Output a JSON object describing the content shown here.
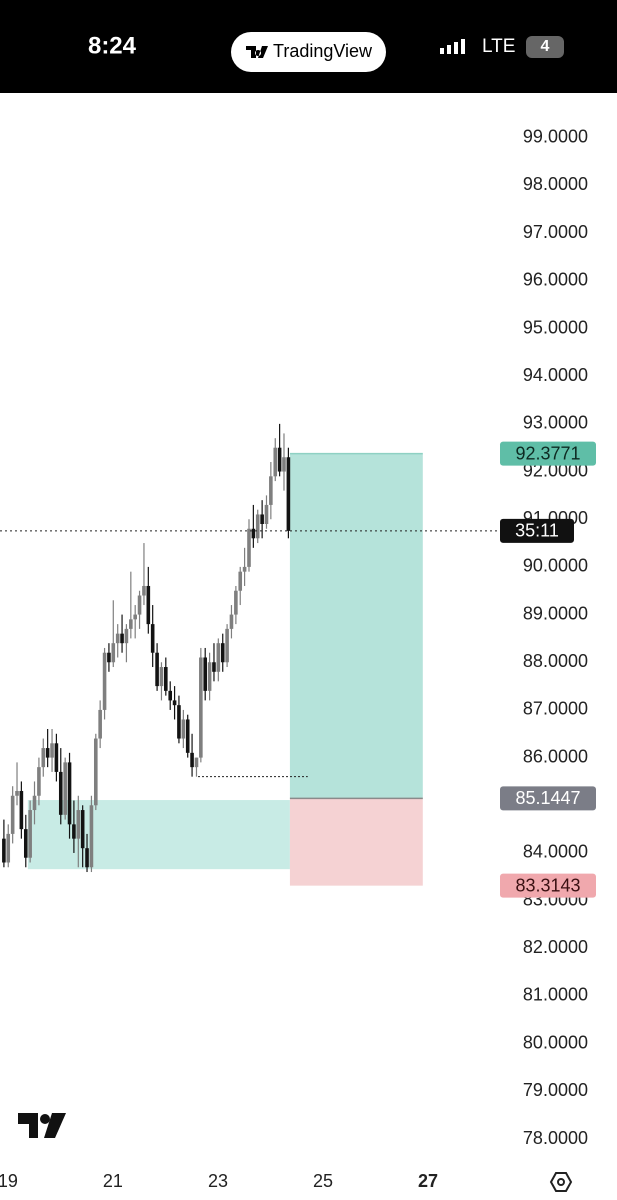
{
  "status_bar": {
    "time": "8:24",
    "app": "TradingView",
    "network": "LTE",
    "battery": "4"
  },
  "chart_data": {
    "type": "candlestick",
    "x": [
      18.924,
      19.007,
      19.091,
      19.174,
      19.257,
      19.341,
      19.424,
      19.507,
      19.591,
      19.674,
      19.757,
      19.841,
      19.924,
      20.007,
      20.091,
      20.174,
      20.257,
      20.341,
      20.424,
      20.507,
      20.591,
      20.674,
      20.757,
      20.841,
      20.924,
      21.007,
      21.091,
      21.174,
      21.257,
      21.341,
      21.424,
      21.507,
      21.591,
      21.674,
      21.757,
      21.841,
      21.924,
      22.007,
      22.091,
      22.174,
      22.257,
      22.341,
      22.424,
      22.507,
      22.591,
      22.674,
      22.757,
      22.841,
      22.924,
      23.007,
      23.091,
      23.174,
      23.257,
      23.341,
      23.424,
      23.507,
      23.591,
      23.674,
      23.757,
      23.841,
      23.924,
      24.007,
      24.091,
      24.174,
      24.257,
      24.341
    ],
    "open": [
      84.3,
      83.8,
      84.4,
      85.2,
      85.3,
      84.5,
      83.9,
      84.9,
      85.2,
      85.8,
      86.2,
      86.0,
      86.3,
      85.7,
      84.8,
      85.9,
      84.6,
      84.3,
      84.9,
      84.1,
      83.7,
      85.0,
      86.4,
      87.0,
      88.2,
      88.0,
      88.4,
      88.6,
      88.4,
      88.7,
      88.9,
      89.0,
      89.4,
      89.6,
      88.8,
      88.2,
      87.5,
      87.9,
      87.4,
      87.2,
      87.1,
      86.4,
      86.8,
      86.1,
      85.8,
      86.0,
      88.1,
      87.4,
      88.0,
      87.8,
      88.4,
      88.0,
      88.7,
      89.0,
      89.5,
      89.9,
      90.0,
      90.8,
      90.6,
      91.1,
      90.9,
      91.3,
      91.9,
      92.5,
      92.0,
      92.3
    ],
    "high": [
      84.7,
      84.6,
      85.4,
      85.9,
      85.5,
      84.8,
      85.1,
      85.5,
      86.0,
      86.4,
      86.6,
      86.6,
      86.5,
      86.2,
      86.0,
      86.1,
      85.1,
      85.2,
      85.0,
      84.4,
      85.2,
      86.5,
      87.2,
      88.3,
      88.4,
      89.3,
      88.8,
      89.0,
      88.8,
      89.9,
      89.2,
      89.5,
      90.5,
      90.0,
      89.2,
      88.4,
      88.0,
      88.1,
      87.6,
      87.5,
      87.3,
      87.0,
      86.9,
      86.5,
      86.0,
      88.3,
      88.3,
      88.2,
      88.4,
      88.5,
      88.6,
      88.8,
      89.2,
      89.6,
      90.0,
      90.4,
      91.0,
      91.3,
      91.2,
      91.4,
      91.5,
      92.2,
      92.7,
      93.0,
      92.8,
      92.5
    ],
    "low": [
      83.7,
      83.7,
      84.2,
      85.0,
      84.3,
      83.7,
      83.8,
      84.6,
      85.0,
      85.6,
      85.8,
      85.7,
      85.5,
      84.6,
      84.7,
      84.3,
      84.0,
      83.7,
      83.7,
      83.6,
      83.6,
      84.9,
      86.2,
      86.8,
      87.8,
      87.9,
      88.1,
      88.2,
      88.0,
      88.5,
      88.5,
      88.7,
      89.2,
      88.6,
      87.9,
      87.4,
      87.2,
      87.3,
      87.0,
      86.8,
      86.3,
      86.2,
      86.0,
      85.6,
      85.6,
      85.9,
      87.2,
      87.2,
      87.6,
      87.6,
      87.8,
      87.9,
      88.5,
      88.8,
      89.2,
      89.6,
      89.9,
      90.4,
      90.5,
      90.6,
      90.8,
      91.0,
      91.8,
      91.9,
      91.6,
      90.6
    ],
    "close": [
      83.8,
      84.4,
      85.2,
      85.3,
      84.5,
      83.9,
      84.9,
      85.2,
      85.8,
      86.2,
      86.0,
      86.3,
      85.7,
      84.8,
      85.9,
      84.6,
      84.3,
      84.9,
      84.1,
      83.7,
      85.0,
      86.4,
      87.0,
      88.2,
      88.0,
      88.4,
      88.6,
      88.4,
      88.7,
      88.9,
      89.0,
      89.4,
      89.6,
      88.8,
      88.2,
      87.5,
      87.9,
      87.4,
      87.2,
      87.1,
      86.4,
      86.8,
      86.1,
      85.8,
      86.0,
      88.1,
      87.4,
      88.0,
      87.8,
      88.4,
      88.0,
      88.7,
      89.0,
      89.5,
      89.9,
      90.0,
      90.8,
      90.6,
      91.1,
      90.9,
      91.3,
      91.9,
      92.5,
      92.0,
      92.3,
      90.756
    ],
    "up_color": "#7f7f7f",
    "down_color": "#131313",
    "xlim": [
      18.85,
      28.37
    ],
    "xticks": [
      19,
      21,
      23,
      25,
      27
    ],
    "ylim": [
      77.56,
      99.94
    ],
    "yticks": [
      {
        "value": 78,
        "label": "78.0000"
      },
      {
        "value": 79,
        "label": "79.0000"
      },
      {
        "value": 80,
        "label": "80.0000"
      },
      {
        "value": 81,
        "label": "81.0000"
      },
      {
        "value": 82,
        "label": "82.0000"
      },
      {
        "value": 83,
        "label": "83.0000"
      },
      {
        "value": 84,
        "label": "84.0000"
      },
      {
        "value": 85,
        "label": "85.0000"
      },
      {
        "value": 86,
        "label": "86.0000"
      },
      {
        "value": 87,
        "label": "87.0000"
      },
      {
        "value": 88,
        "label": "88.0000"
      },
      {
        "value": 89,
        "label": "89.0000"
      },
      {
        "value": 90,
        "label": "90.0000"
      },
      {
        "value": 91,
        "label": "91.0000"
      },
      {
        "value": 92,
        "label": "92.0000"
      },
      {
        "value": 93,
        "label": "93.0000"
      },
      {
        "value": 94,
        "label": "94.0000"
      },
      {
        "value": 95,
        "label": "95.0000"
      },
      {
        "value": 96,
        "label": "96.0000"
      },
      {
        "value": 97,
        "label": "97.0000"
      },
      {
        "value": 98,
        "label": "98.0000"
      },
      {
        "value": 99,
        "label": "99.0000"
      }
    ],
    "last_price": 90.756,
    "countdown": "35:11",
    "position": {
      "target": 92.3771,
      "entry": 85.1447,
      "stop": 83.3143,
      "x": [
        24.37,
        26.9
      ],
      "target_color": "#b5e3da",
      "stop_color": "#f5d2d3"
    },
    "zones": [
      {
        "y": [
          83.66,
          85.11
        ],
        "x": [
          19.38,
          24.37
        ],
        "color": "#c8ebe5"
      }
    ],
    "levels": [
      {
        "value": 85.6,
        "x": [
          22.62,
          24.71
        ]
      }
    ]
  }
}
